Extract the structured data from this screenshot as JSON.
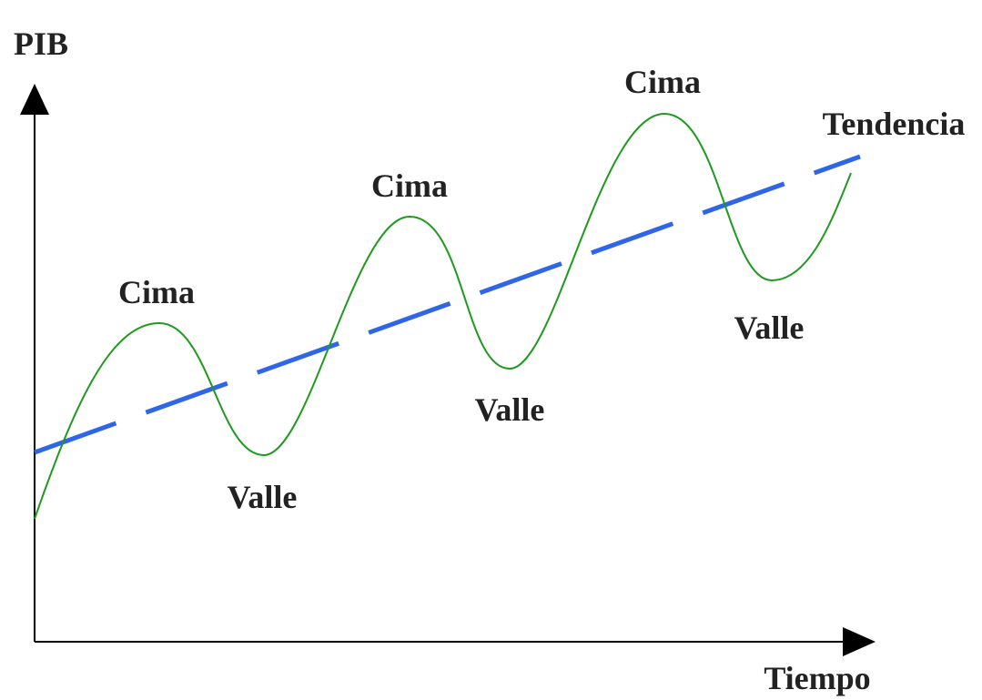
{
  "axes": {
    "y_label": "PIB",
    "x_label": "Tiempo"
  },
  "peaks": [
    "Cima",
    "Cima",
    "Cima"
  ],
  "valleys": [
    "Valle",
    "Valle",
    "Valle"
  ],
  "trend_label": "Tendencia"
}
